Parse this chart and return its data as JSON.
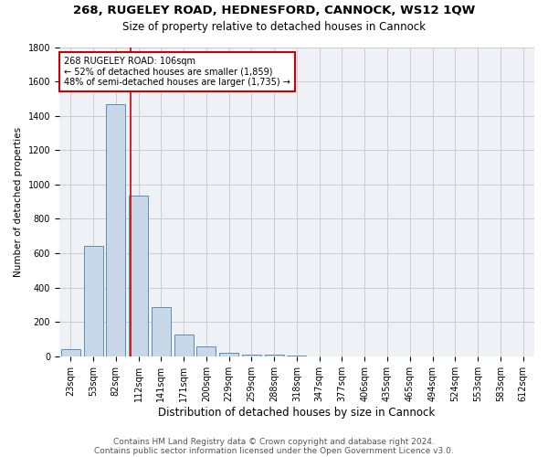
{
  "title1": "268, RUGELEY ROAD, HEDNESFORD, CANNOCK, WS12 1QW",
  "title2": "Size of property relative to detached houses in Cannock",
  "xlabel": "Distribution of detached houses by size in Cannock",
  "ylabel": "Number of detached properties",
  "bar_labels": [
    "23sqm",
    "53sqm",
    "82sqm",
    "112sqm",
    "141sqm",
    "171sqm",
    "200sqm",
    "229sqm",
    "259sqm",
    "288sqm",
    "318sqm",
    "347sqm",
    "377sqm",
    "406sqm",
    "435sqm",
    "465sqm",
    "494sqm",
    "524sqm",
    "553sqm",
    "583sqm",
    "612sqm"
  ],
  "bar_values": [
    40,
    645,
    1470,
    935,
    285,
    125,
    60,
    20,
    12,
    10,
    5,
    0,
    0,
    0,
    0,
    0,
    0,
    0,
    0,
    0,
    0
  ],
  "bar_color": "#c8d8e8",
  "bar_edgecolor": "#5b8db8",
  "vline_x": 2.65,
  "vline_color": "#cc0000",
  "annotation_text": "268 RUGELEY ROAD: 106sqm\n← 52% of detached houses are smaller (1,859)\n48% of semi-detached houses are larger (1,735) →",
  "annotation_box_color": "#cc0000",
  "ylim": [
    0,
    1800
  ],
  "grid_color": "#cccccc",
  "background_color": "#eef2f7",
  "footer1": "Contains HM Land Registry data © Crown copyright and database right 2024.",
  "footer2": "Contains public sector information licensed under the Open Government Licence v3.0.",
  "title1_fontsize": 9.5,
  "title2_fontsize": 8.5,
  "xlabel_fontsize": 8.5,
  "ylabel_fontsize": 7.5,
  "ann_fontsize": 7,
  "tick_fontsize": 7,
  "footer_fontsize": 6.5
}
